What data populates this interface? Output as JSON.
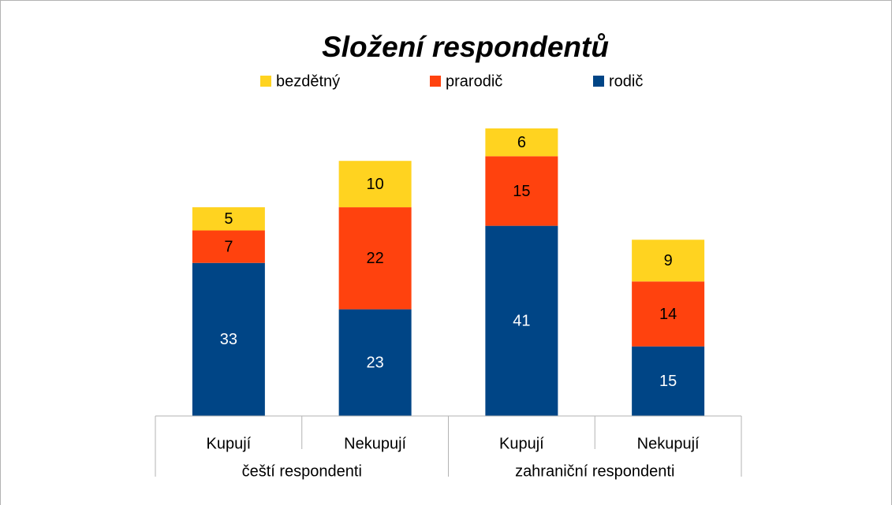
{
  "chart_data": {
    "type": "stacked_bar",
    "title": "Složení respondentů",
    "categories": [
      "Kupují",
      "Nekupují",
      "Kupují",
      "Nekupují"
    ],
    "groups": [
      "čeští respondenti",
      "zahraniční respondenti"
    ],
    "series": [
      {
        "name": "rodič",
        "color": "#004586",
        "values": [
          33,
          23,
          41,
          15
        ]
      },
      {
        "name": "prarodič",
        "color": "#ff420e",
        "values": [
          7,
          22,
          15,
          14
        ]
      },
      {
        "name": "bezdětný",
        "color": "#ffd320",
        "values": [
          5,
          10,
          6,
          9
        ]
      }
    ],
    "legend": "top"
  }
}
